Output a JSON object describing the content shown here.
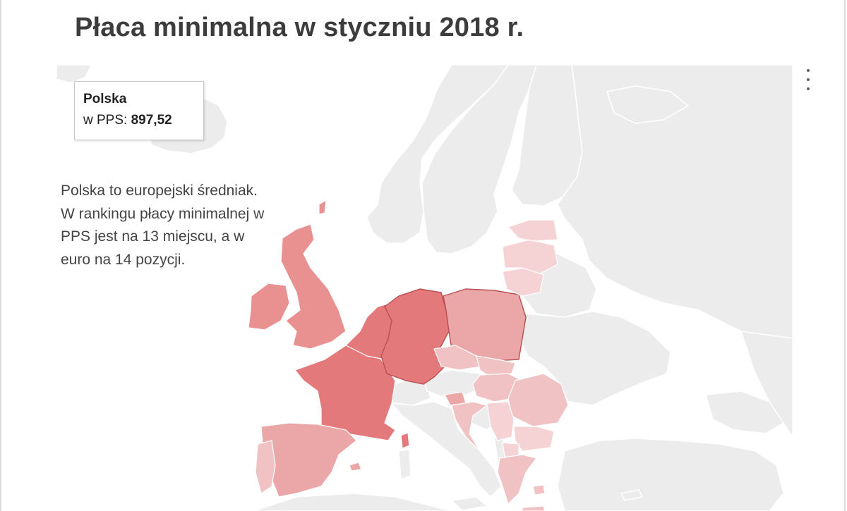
{
  "title": "Płaca minimalna w styczniu 2018 r.",
  "tooltip": {
    "country": "Polska",
    "metric_label": "w PPS:",
    "value": "897,52"
  },
  "note": "Polska to europejski średniak. W rankingu płacy minimalnej w PPS jest na 13 miejscu, a w euro na 14 pozycji.",
  "menu": {
    "icon": "more-vert-icon"
  },
  "colors": {
    "land_no_data": "#ececec",
    "background": "#ffffff",
    "highest": "#e4797b",
    "high": "#e99091",
    "medium": "#eba7a8",
    "low": "#f1c2c3",
    "lowest": "#f5d2d3"
  },
  "map_data": {
    "type": "choropleth",
    "region": "Europe",
    "highlighted_country": "Polska",
    "countries": [
      {
        "id": "DE",
        "shade": "highest"
      },
      {
        "id": "FR",
        "shade": "highest"
      },
      {
        "id": "NL",
        "shade": "highest"
      },
      {
        "id": "BE",
        "shade": "highest"
      },
      {
        "id": "LU",
        "shade": "highest"
      },
      {
        "id": "IE",
        "shade": "high"
      },
      {
        "id": "GB",
        "shade": "high"
      },
      {
        "id": "ES",
        "shade": "medium"
      },
      {
        "id": "PL",
        "shade": "medium"
      },
      {
        "id": "SI",
        "shade": "medium"
      },
      {
        "id": "PT",
        "shade": "low"
      },
      {
        "id": "CZ",
        "shade": "low"
      },
      {
        "id": "SK",
        "shade": "low"
      },
      {
        "id": "HU",
        "shade": "low"
      },
      {
        "id": "RO",
        "shade": "low"
      },
      {
        "id": "HR",
        "shade": "low"
      },
      {
        "id": "GR",
        "shade": "low"
      },
      {
        "id": "MT",
        "shade": "low"
      },
      {
        "id": "LT",
        "shade": "lowest"
      },
      {
        "id": "LV",
        "shade": "lowest"
      },
      {
        "id": "EE",
        "shade": "lowest"
      },
      {
        "id": "RS",
        "shade": "lowest"
      },
      {
        "id": "BG",
        "shade": "lowest"
      },
      {
        "id": "MK",
        "shade": "lowest"
      },
      {
        "id": "ME",
        "shade": "lowest"
      }
    ]
  }
}
